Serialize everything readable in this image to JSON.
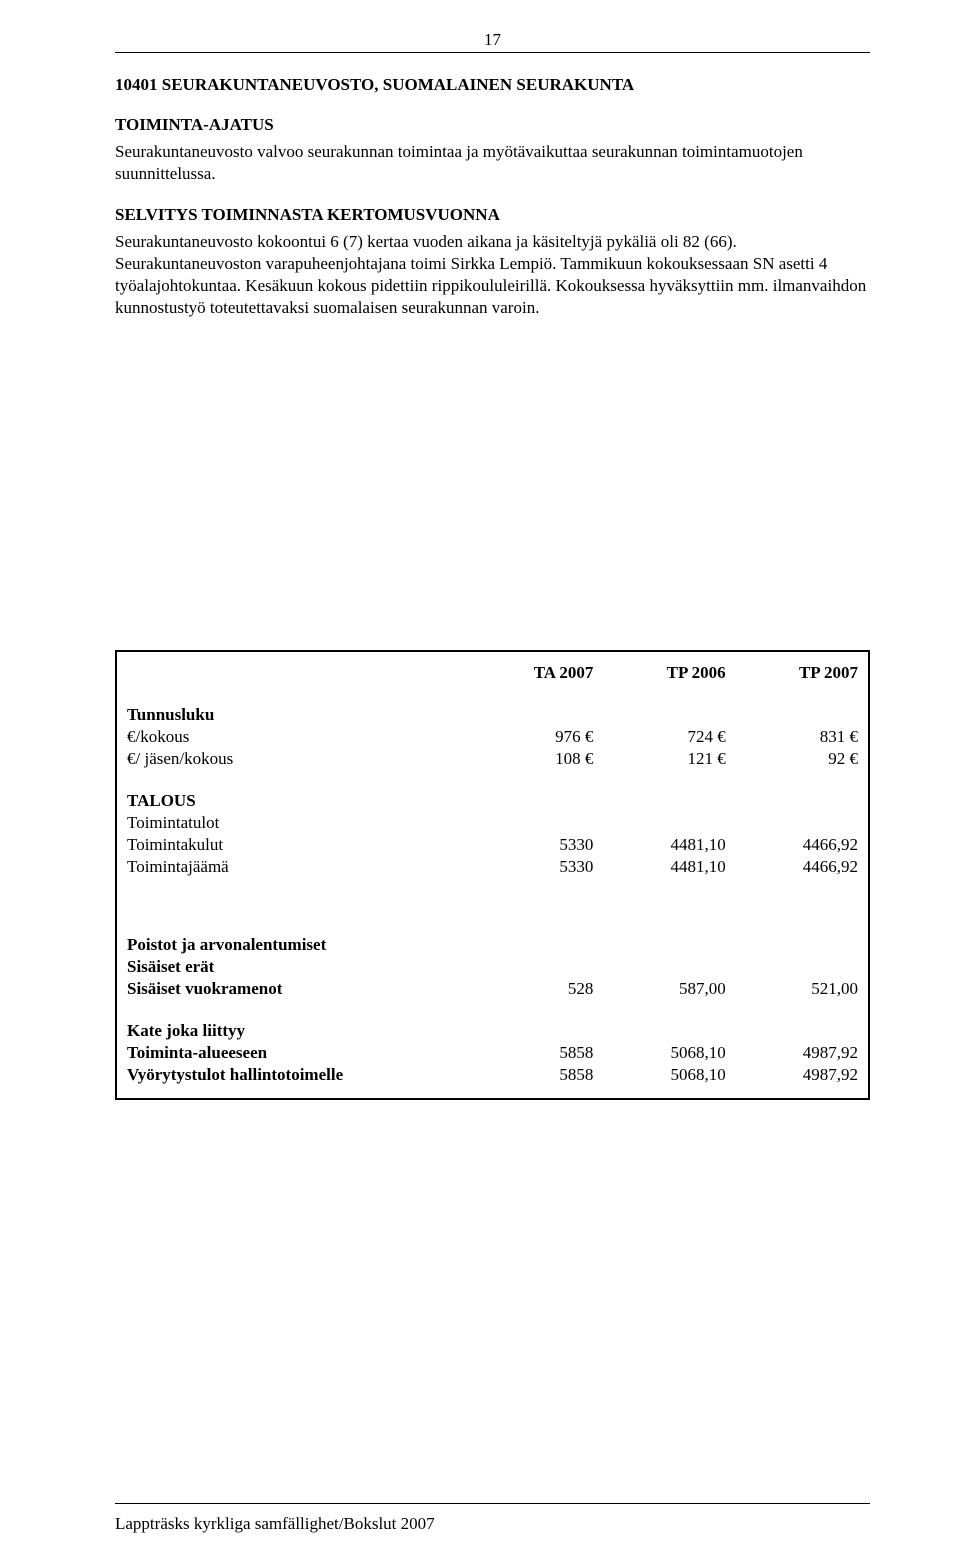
{
  "page_number": "17",
  "section": {
    "code_title": "10401  SEURAKUNTANEUVOSTO, SUOMALAINEN SEURAKUNTA",
    "ajatus_label": "TOIMINTA-AJATUS",
    "ajatus_text": "Seurakuntaneuvosto valvoo seurakunnan toimintaa ja myötävaikuttaa seurakunnan toimintamuotojen suunnittelussa.",
    "selvitys_label": "SELVITYS TOIMINNASTA KERTOMUSVUONNA",
    "selvitys_text": "Seurakuntaneuvosto kokoontui 6 (7)  kertaa vuoden aikana ja käsiteltyjä pykäliä oli 82 (66). Seurakuntaneuvoston varapuheenjohtajana toimi Sirkka Lempiö. Tammikuun kokouksessaan SN asetti 4 työalajohtokuntaa. Kesäkuun kokous pidettiin rippikoululeirillä. Kokouksessa hyväksyttiin mm. ilmanvaihdon kunnostustyö toteutettavaksi suomalaisen seurakunnan varoin."
  },
  "table": {
    "headers": {
      "c1": "TA 2007",
      "c2": "TP 2006",
      "c3": "TP 2007"
    },
    "tunnusluku": {
      "label": "Tunnusluku",
      "row1": {
        "label": "€/kokous",
        "v1": "976 €",
        "v2": "724 €",
        "v3": "831 €"
      },
      "row2": {
        "label": "€/ jäsen/kokous",
        "v1": "108 €",
        "v2": "121 €",
        "v3": "92 €"
      }
    },
    "talous": {
      "label": "TALOUS",
      "row1": {
        "label": "Toimintatulot",
        "v1": "",
        "v2": "",
        "v3": ""
      },
      "row2": {
        "label": "Toimintakulut",
        "v1": "5330",
        "v2": "4481,10",
        "v3": "4466,92"
      },
      "row3": {
        "label": "Toimintajäämä",
        "v1": "5330",
        "v2": "4481,10",
        "v3": "4466,92"
      }
    },
    "poistot": {
      "row1": {
        "label": "Poistot ja arvonalentumiset"
      },
      "row2": {
        "label": "Sisäiset erät"
      },
      "row3": {
        "label": "Sisäiset vuokramenot",
        "v1": "528",
        "v2": "587,00",
        "v3": "521,00"
      }
    },
    "kate": {
      "row1": {
        "label": "Kate joka liittyy"
      },
      "row2": {
        "label": "Toiminta-alueeseen",
        "v1": "5858",
        "v2": "5068,10",
        "v3": "4987,92"
      },
      "row3": {
        "label": "Vyörytystulot hallintotoimelle",
        "v1": "5858",
        "v2": "5068,10",
        "v3": "4987,92"
      }
    }
  },
  "footer": "Lappträsks kyrkliga samfällighet/Bokslut 2007"
}
